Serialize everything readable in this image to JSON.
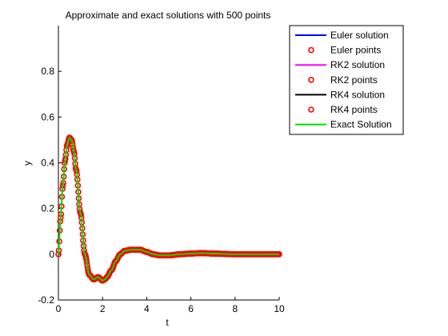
{
  "chart_data": {
    "type": "line",
    "title": "Approximate and exact solutions with 500 points",
    "xlabel": "t",
    "ylabel": "y",
    "xlim": [
      0,
      10
    ],
    "ylim": [
      -0.2,
      1.0
    ],
    "xticks": [
      0,
      2,
      4,
      6,
      8,
      10
    ],
    "yticks": [
      -0.2,
      0,
      0.2,
      0.4,
      0.6,
      0.8
    ],
    "ytick_labels": [
      "-0.2",
      "0",
      "0.2",
      "0.4",
      "0.6",
      "0.8"
    ],
    "grid": false,
    "legend_position": "outside-top-right",
    "x": [
      0,
      0.1,
      0.2,
      0.3,
      0.4,
      0.5,
      0.6,
      0.7,
      0.8,
      1.0,
      1.2,
      1.4,
      1.6,
      1.8,
      2.0,
      2.1,
      2.2,
      2.4,
      2.6,
      2.8,
      3.0,
      3.3,
      3.7,
      4.0,
      4.3,
      4.6,
      5.0,
      5.5,
      6.0,
      6.5,
      7.0,
      8.0,
      9.0,
      10.0
    ],
    "series": [
      {
        "name": "Euler solution",
        "color": "#0000ff",
        "style": "line",
        "values": "same-as-exact"
      },
      {
        "name": "Euler points",
        "color": "#ff0000",
        "style": "marker-o"
      },
      {
        "name": "RK2 solution",
        "color": "#ff00ff",
        "style": "line"
      },
      {
        "name": "RK2 points",
        "color": "#ff0000",
        "style": "marker-o"
      },
      {
        "name": "RK4 solution",
        "color": "#000000",
        "style": "line"
      },
      {
        "name": "RK4 points",
        "color": "#ff0000",
        "style": "marker-o"
      },
      {
        "name": "Exact Solution",
        "color": "#00dd00",
        "style": "line",
        "values": [
          0,
          0.16,
          0.3,
          0.41,
          0.48,
          0.51,
          0.5,
          0.45,
          0.37,
          0.18,
          0.0,
          -0.09,
          -0.11,
          -0.1,
          -0.115,
          -0.11,
          -0.1,
          -0.07,
          -0.03,
          0.0,
          0.015,
          0.02,
          0.02,
          0.01,
          0.0,
          -0.005,
          -0.005,
          0.0,
          0.003,
          0.005,
          0.003,
          0.0,
          0.0,
          0.0
        ]
      }
    ],
    "marker_color": "#ff0000"
  }
}
